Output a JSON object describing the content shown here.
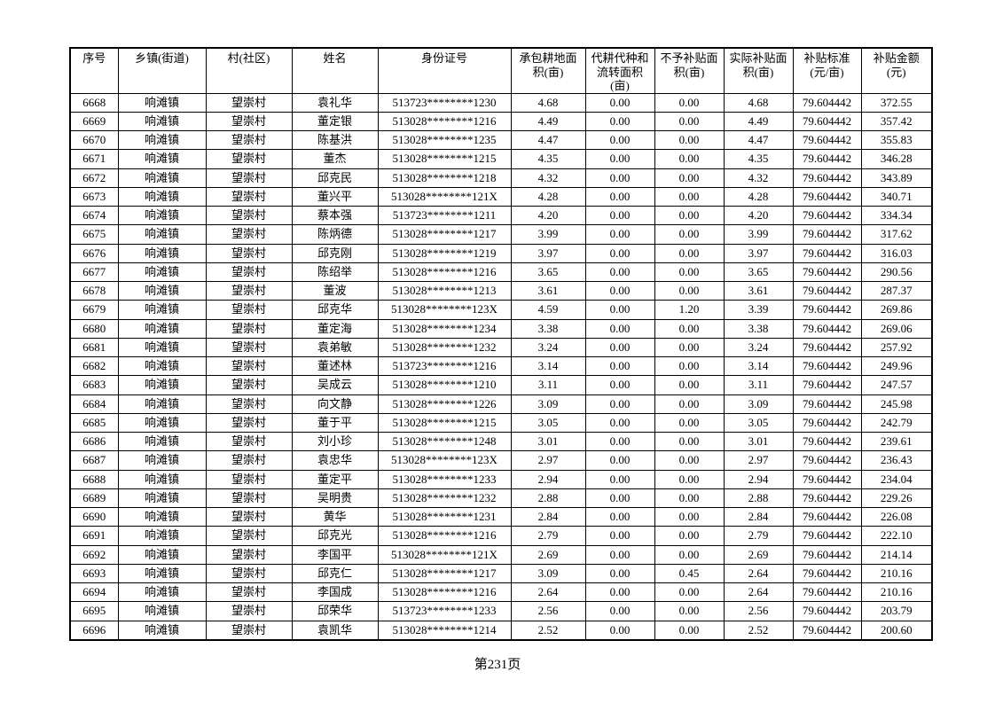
{
  "page": {
    "background_color": "#ffffff",
    "text_color": "#000000",
    "border_color": "#000000",
    "footer_page_label": "第231页"
  },
  "table": {
    "headers": [
      "序号",
      "乡镇(街道)",
      "村(社区)",
      "姓名",
      "身份证号",
      "承包耕地面\n积(亩)",
      "代耕代种和\n流转面积\n(亩)",
      "不予补贴面\n积(亩)",
      "实际补贴面\n积(亩)",
      "补贴标准\n(元/亩)",
      "补贴金额\n(元)"
    ],
    "rows": [
      [
        "6668",
        "响滩镇",
        "望崇村",
        "袁礼华",
        "513723********1230",
        "4.68",
        "0.00",
        "0.00",
        "4.68",
        "79.604442",
        "372.55"
      ],
      [
        "6669",
        "响滩镇",
        "望崇村",
        "董定银",
        "513028********1216",
        "4.49",
        "0.00",
        "0.00",
        "4.49",
        "79.604442",
        "357.42"
      ],
      [
        "6670",
        "响滩镇",
        "望崇村",
        "陈基洪",
        "513028********1235",
        "4.47",
        "0.00",
        "0.00",
        "4.47",
        "79.604442",
        "355.83"
      ],
      [
        "6671",
        "响滩镇",
        "望崇村",
        "董杰",
        "513028********1215",
        "4.35",
        "0.00",
        "0.00",
        "4.35",
        "79.604442",
        "346.28"
      ],
      [
        "6672",
        "响滩镇",
        "望崇村",
        "邱克民",
        "513028********1218",
        "4.32",
        "0.00",
        "0.00",
        "4.32",
        "79.604442",
        "343.89"
      ],
      [
        "6673",
        "响滩镇",
        "望崇村",
        "董兴平",
        "513028********121X",
        "4.28",
        "0.00",
        "0.00",
        "4.28",
        "79.604442",
        "340.71"
      ],
      [
        "6674",
        "响滩镇",
        "望崇村",
        "蔡本强",
        "513723********1211",
        "4.20",
        "0.00",
        "0.00",
        "4.20",
        "79.604442",
        "334.34"
      ],
      [
        "6675",
        "响滩镇",
        "望崇村",
        "陈炳德",
        "513028********1217",
        "3.99",
        "0.00",
        "0.00",
        "3.99",
        "79.604442",
        "317.62"
      ],
      [
        "6676",
        "响滩镇",
        "望崇村",
        "邱克刚",
        "513028********1219",
        "3.97",
        "0.00",
        "0.00",
        "3.97",
        "79.604442",
        "316.03"
      ],
      [
        "6677",
        "响滩镇",
        "望崇村",
        "陈绍举",
        "513028********1216",
        "3.65",
        "0.00",
        "0.00",
        "3.65",
        "79.604442",
        "290.56"
      ],
      [
        "6678",
        "响滩镇",
        "望崇村",
        "董波",
        "513028********1213",
        "3.61",
        "0.00",
        "0.00",
        "3.61",
        "79.604442",
        "287.37"
      ],
      [
        "6679",
        "响滩镇",
        "望崇村",
        "邱克华",
        "513028********123X",
        "4.59",
        "0.00",
        "1.20",
        "3.39",
        "79.604442",
        "269.86"
      ],
      [
        "6680",
        "响滩镇",
        "望崇村",
        "董定海",
        "513028********1234",
        "3.38",
        "0.00",
        "0.00",
        "3.38",
        "79.604442",
        "269.06"
      ],
      [
        "6681",
        "响滩镇",
        "望崇村",
        "袁弟敏",
        "513028********1232",
        "3.24",
        "0.00",
        "0.00",
        "3.24",
        "79.604442",
        "257.92"
      ],
      [
        "6682",
        "响滩镇",
        "望崇村",
        "董述林",
        "513723********1216",
        "3.14",
        "0.00",
        "0.00",
        "3.14",
        "79.604442",
        "249.96"
      ],
      [
        "6683",
        "响滩镇",
        "望崇村",
        "吴成云",
        "513028********1210",
        "3.11",
        "0.00",
        "0.00",
        "3.11",
        "79.604442",
        "247.57"
      ],
      [
        "6684",
        "响滩镇",
        "望崇村",
        "向文静",
        "513028********1226",
        "3.09",
        "0.00",
        "0.00",
        "3.09",
        "79.604442",
        "245.98"
      ],
      [
        "6685",
        "响滩镇",
        "望崇村",
        "董于平",
        "513028********1215",
        "3.05",
        "0.00",
        "0.00",
        "3.05",
        "79.604442",
        "242.79"
      ],
      [
        "6686",
        "响滩镇",
        "望崇村",
        "刘小珍",
        "513028********1248",
        "3.01",
        "0.00",
        "0.00",
        "3.01",
        "79.604442",
        "239.61"
      ],
      [
        "6687",
        "响滩镇",
        "望崇村",
        "袁忠华",
        "513028********123X",
        "2.97",
        "0.00",
        "0.00",
        "2.97",
        "79.604442",
        "236.43"
      ],
      [
        "6688",
        "响滩镇",
        "望崇村",
        "董定平",
        "513028********1233",
        "2.94",
        "0.00",
        "0.00",
        "2.94",
        "79.604442",
        "234.04"
      ],
      [
        "6689",
        "响滩镇",
        "望崇村",
        "吴明贵",
        "513028********1232",
        "2.88",
        "0.00",
        "0.00",
        "2.88",
        "79.604442",
        "229.26"
      ],
      [
        "6690",
        "响滩镇",
        "望崇村",
        "黄华",
        "513028********1231",
        "2.84",
        "0.00",
        "0.00",
        "2.84",
        "79.604442",
        "226.08"
      ],
      [
        "6691",
        "响滩镇",
        "望崇村",
        "邱克光",
        "513028********1216",
        "2.79",
        "0.00",
        "0.00",
        "2.79",
        "79.604442",
        "222.10"
      ],
      [
        "6692",
        "响滩镇",
        "望崇村",
        "李国平",
        "513028********121X",
        "2.69",
        "0.00",
        "0.00",
        "2.69",
        "79.604442",
        "214.14"
      ],
      [
        "6693",
        "响滩镇",
        "望崇村",
        "邱克仁",
        "513028********1217",
        "3.09",
        "0.00",
        "0.45",
        "2.64",
        "79.604442",
        "210.16"
      ],
      [
        "6694",
        "响滩镇",
        "望崇村",
        "李国成",
        "513028********1216",
        "2.64",
        "0.00",
        "0.00",
        "2.64",
        "79.604442",
        "210.16"
      ],
      [
        "6695",
        "响滩镇",
        "望崇村",
        "邱荣华",
        "513723********1233",
        "2.56",
        "0.00",
        "0.00",
        "2.56",
        "79.604442",
        "203.79"
      ],
      [
        "6696",
        "响滩镇",
        "望崇村",
        "袁凯华",
        "513028********1214",
        "2.52",
        "0.00",
        "0.00",
        "2.52",
        "79.604442",
        "200.60"
      ]
    ]
  }
}
